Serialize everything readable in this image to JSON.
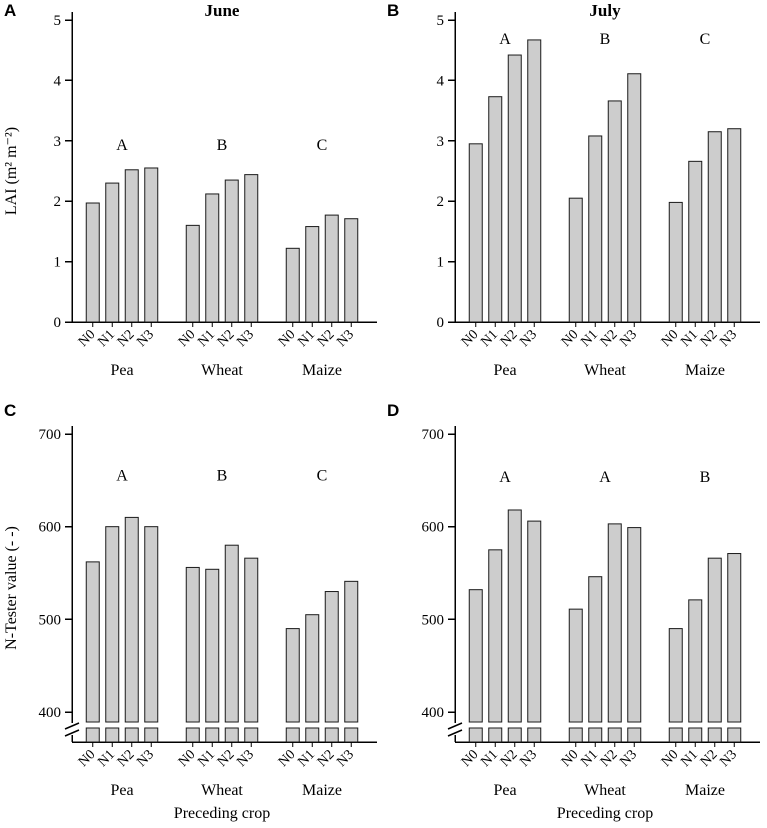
{
  "figure": {
    "bar_fill": "#cdcdcd",
    "bar_stroke": "#1a1a1a",
    "axis_color": "#000000"
  },
  "chart_data": [
    {
      "type": "bar",
      "panel": "A",
      "title": "June",
      "ylabel": "LAI (m² m⁻²)",
      "xlabel": "",
      "ylim": [
        0,
        5
      ],
      "yticks": [
        0,
        1,
        2,
        3,
        4,
        5
      ],
      "axis_break": false,
      "legend": "none",
      "grid": false,
      "bar_labels": [
        "N0",
        "N1",
        "N2",
        "N3"
      ],
      "groups": [
        {
          "name": "Pea",
          "letter": "A",
          "values": [
            1.97,
            2.3,
            2.52,
            2.55
          ]
        },
        {
          "name": "Wheat",
          "letter": "B",
          "values": [
            1.6,
            2.12,
            2.35,
            2.44
          ]
        },
        {
          "name": "Maize",
          "letter": "C",
          "values": [
            1.22,
            1.58,
            1.77,
            1.71
          ]
        }
      ],
      "letter_y": 2.85
    },
    {
      "type": "bar",
      "panel": "B",
      "title": "July",
      "ylabel": "",
      "xlabel": "",
      "ylim": [
        0,
        5
      ],
      "yticks": [
        0,
        1,
        2,
        3,
        4,
        5
      ],
      "axis_break": false,
      "legend": "none",
      "grid": false,
      "bar_labels": [
        "N0",
        "N1",
        "N2",
        "N3"
      ],
      "groups": [
        {
          "name": "Pea",
          "letter": "A",
          "values": [
            2.95,
            3.73,
            4.42,
            4.67
          ]
        },
        {
          "name": "Wheat",
          "letter": "B",
          "values": [
            2.05,
            3.08,
            3.66,
            4.11
          ]
        },
        {
          "name": "Maize",
          "letter": "C",
          "values": [
            1.98,
            2.66,
            3.15,
            3.2
          ]
        }
      ],
      "letter_y": 4.6
    },
    {
      "type": "bar",
      "panel": "C",
      "title": "",
      "ylabel": "N-Tester value (- -)",
      "xlabel": "Preceding crop",
      "ylim": [
        400,
        700
      ],
      "yticks": [
        400,
        500,
        600,
        700
      ],
      "axis_break": true,
      "legend": "none",
      "grid": false,
      "bar_labels": [
        "N0",
        "N1",
        "N2",
        "N3"
      ],
      "groups": [
        {
          "name": "Pea",
          "letter": "A",
          "values": [
            562,
            600,
            610,
            600
          ]
        },
        {
          "name": "Wheat",
          "letter": "B",
          "values": [
            556,
            554,
            580,
            566
          ]
        },
        {
          "name": "Maize",
          "letter": "C",
          "values": [
            490,
            505,
            530,
            541
          ]
        }
      ],
      "letter_y": 650
    },
    {
      "type": "bar",
      "panel": "D",
      "title": "",
      "ylabel": "",
      "xlabel": "Preceding crop",
      "ylim": [
        400,
        700
      ],
      "yticks": [
        400,
        500,
        600,
        700
      ],
      "axis_break": true,
      "legend": "none",
      "grid": false,
      "bar_labels": [
        "N0",
        "N1",
        "N2",
        "N3"
      ],
      "groups": [
        {
          "name": "Pea",
          "letter": "A",
          "values": [
            532,
            575,
            618,
            606
          ]
        },
        {
          "name": "Wheat",
          "letter": "A",
          "values": [
            511,
            546,
            603,
            599
          ]
        },
        {
          "name": "Maize",
          "letter": "B",
          "values": [
            490,
            521,
            566,
            571
          ]
        }
      ],
      "letter_y": 648
    }
  ]
}
